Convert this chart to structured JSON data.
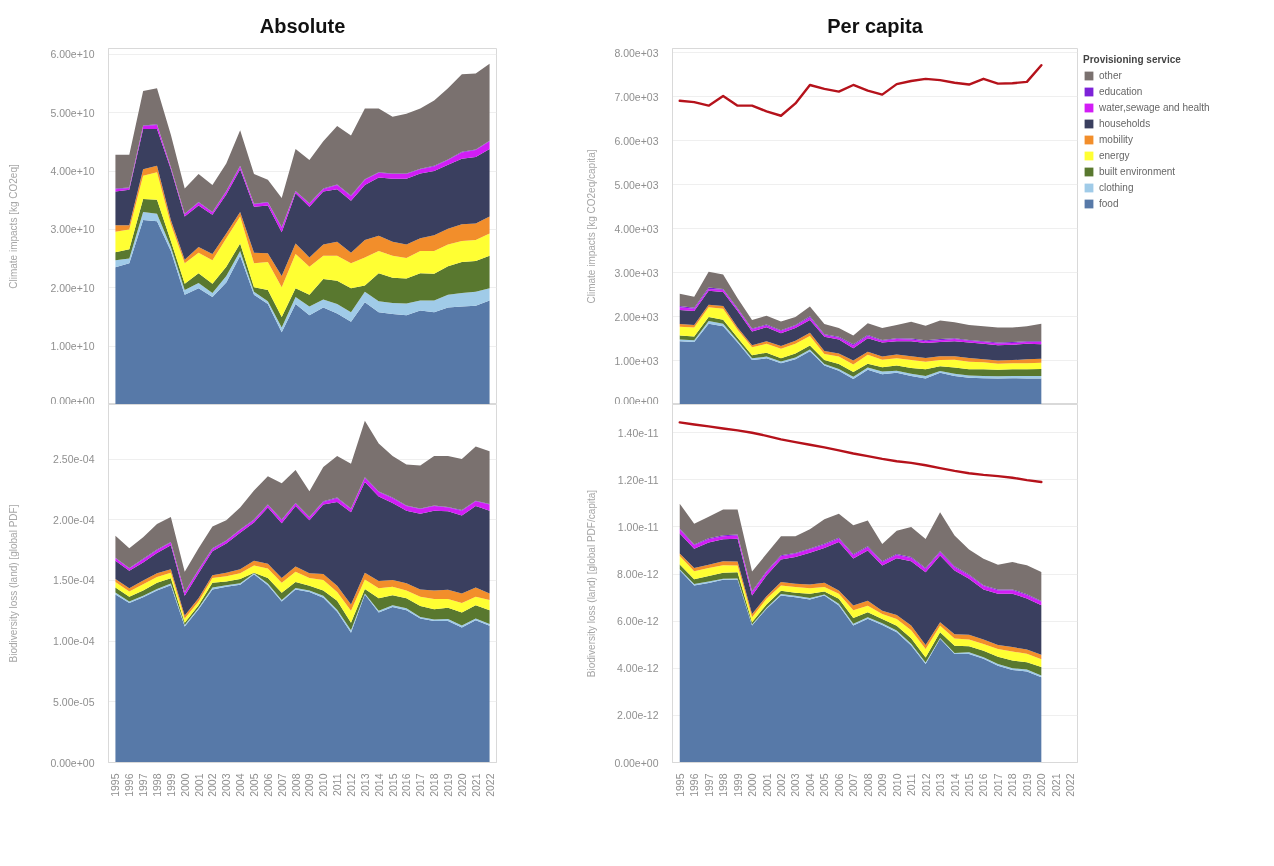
{
  "chart_data": [
    {
      "type": "area",
      "title": "Absolute",
      "ylabel": "Climate impacts [kg CO2eq]",
      "stacked": true,
      "grid": "y",
      "tick_labels": "y",
      "categories": [
        "1995",
        "1996",
        "1997",
        "1998",
        "1999",
        "2000",
        "2001",
        "2002",
        "2003",
        "2004",
        "2005",
        "2006",
        "2007",
        "2008",
        "2009",
        "2010",
        "2011",
        "2012",
        "2013",
        "2014",
        "2015",
        "2016",
        "2017",
        "2018",
        "2019",
        "2020",
        "2021",
        "2022"
      ],
      "ylim": [
        0,
        61000000000.0
      ],
      "yticks": [
        {
          "value": 0,
          "label": "0.00e+00"
        },
        {
          "value": 10000000000.0,
          "label": "1.00e+10"
        },
        {
          "value": 20000000000.0,
          "label": "2.00e+10"
        },
        {
          "value": 30000000000.0,
          "label": "3.00e+10"
        },
        {
          "value": 40000000000.0,
          "label": "4.00e+10"
        },
        {
          "value": 50000000000.0,
          "label": "5.00e+10"
        },
        {
          "value": 60000000000.0,
          "label": "6.00e+10"
        }
      ],
      "series": [
        {
          "color": "#5779a8",
          "values": [
            23500000000.0,
            24200000000.0,
            31600000000.0,
            31400000000.0,
            26300000000.0,
            18800000000.0,
            19900000000.0,
            18400000000.0,
            20900000000.0,
            25500000000.0,
            18800000000.0,
            17200000000.0,
            12400000000.0,
            17200000000.0,
            15300000000.0,
            16600000000.0,
            15600000000.0,
            14200000000.0,
            17500000000.0,
            15800000000.0,
            15500000000.0,
            15300000000.0,
            16100000000.0,
            15800000000.0,
            16600000000.0,
            16800000000.0,
            16900000000.0,
            17800000000.0
          ]
        },
        {
          "color": "#a0cbe8",
          "values": [
            1200000000.0,
            800000000.0,
            1400000000.0,
            1300000000.0,
            700000000.0,
            800000000.0,
            900000000.0,
            700000000.0,
            1100000000.0,
            800000000.0,
            500000000.0,
            500000000.0,
            800000000.0,
            1200000000.0,
            1500000000.0,
            1400000000.0,
            1600000000.0,
            1600000000.0,
            1800000000.0,
            1900000000.0,
            1900000000.0,
            2000000000.0,
            1700000000.0,
            2000000000.0,
            2200000000.0,
            2300000000.0,
            2400000000.0,
            2100000000.0
          ]
        },
        {
          "color": "#59782f",
          "values": [
            1400000000.0,
            1600000000.0,
            2200000000.0,
            2400000000.0,
            1000000000.0,
            1100000000.0,
            1700000000.0,
            1600000000.0,
            1600000000.0,
            1300000000.0,
            800000000.0,
            1900000000.0,
            1800000000.0,
            1500000000.0,
            2000000000.0,
            3500000000.0,
            4000000000.0,
            4100000000.0,
            1100000000.0,
            4800000000.0,
            4300000000.0,
            4300000000.0,
            4700000000.0,
            4600000000.0,
            4900000000.0,
            5300000000.0,
            5300000000.0,
            5600000000.0
          ]
        },
        {
          "color": "#ffff33",
          "values": [
            3500000000.0,
            3400000000.0,
            4000000000.0,
            4700000000.0,
            2900000000.0,
            3500000000.0,
            3500000000.0,
            4000000000.0,
            4900000000.0,
            4600000000.0,
            4100000000.0,
            4800000000.0,
            5100000000.0,
            5900000000.0,
            4800000000.0,
            4000000000.0,
            4300000000.0,
            4300000000.0,
            4800000000.0,
            3800000000.0,
            3800000000.0,
            3500000000.0,
            3800000000.0,
            3900000000.0,
            3700000000.0,
            3600000000.0,
            3600000000.0,
            3800000000.0
          ]
        },
        {
          "color": "#f28e2b",
          "values": [
            1100000000.0,
            700000000.0,
            1100000000.0,
            1100000000.0,
            700000000.0,
            600000000.0,
            1000000000.0,
            1100000000.0,
            800000000.0,
            800000000.0,
            1800000000.0,
            1500000000.0,
            1900000000.0,
            1800000000.0,
            1600000000.0,
            1900000000.0,
            2400000000.0,
            1800000000.0,
            3000000000.0,
            2600000000.0,
            2400000000.0,
            2300000000.0,
            2200000000.0,
            2700000000.0,
            2700000000.0,
            2900000000.0,
            2800000000.0,
            2900000000.0
          ]
        },
        {
          "color": "#3a3f5f",
          "values": [
            5800000000.0,
            6100000000.0,
            6900000000.0,
            6300000000.0,
            8700000000.0,
            7400000000.0,
            7100000000.0,
            6700000000.0,
            6700000000.0,
            7300000000.0,
            7900000000.0,
            8200000000.0,
            7500000000.0,
            8600000000.0,
            8700000000.0,
            9100000000.0,
            9000000000.0,
            8900000000.0,
            9400000000.0,
            10000000000.0,
            10800000000.0,
            11300000000.0,
            11100000000.0,
            11000000000.0,
            11000000000.0,
            11200000000.0,
            11400000000.0,
            11600000000.0
          ]
        },
        {
          "color": "#d21df5",
          "values": [
            400000000.0,
            300000000.0,
            500000000.0,
            700000000.0,
            300000000.0,
            400000000.0,
            500000000.0,
            400000000.0,
            500000000.0,
            500000000.0,
            400000000.0,
            500000000.0,
            800000000.0,
            300000000.0,
            500000000.0,
            400000000.0,
            700000000.0,
            800000000.0,
            900000000.0,
            800000000.0,
            800000000.0,
            800000000.0,
            700000000.0,
            800000000.0,
            800000000.0,
            1100000000.0,
            1200000000.0,
            1300000000.0
          ]
        },
        {
          "color": "#7d22d8",
          "values": [
            100000000.0,
            100000000.0,
            100000000.0,
            100000000.0,
            100000000.0,
            100000000.0,
            100000000.0,
            100000000.0,
            100000000.0,
            100000000.0,
            100000000.0,
            100000000.0,
            100000000.0,
            100000000.0,
            100000000.0,
            100000000.0,
            100000000.0,
            100000000.0,
            100000000.0,
            100000000.0,
            100000000.0,
            100000000.0,
            100000000.0,
            100000000.0,
            100000000.0,
            100000000.0,
            100000000.0,
            100000000.0
          ]
        },
        {
          "color": "#7a716f",
          "values": [
            5800000000.0,
            5600000000.0,
            5900000000.0,
            6200000000.0,
            5500000000.0,
            4300000000.0,
            4800000000.0,
            4600000000.0,
            4700000000.0,
            6100000000.0,
            5100000000.0,
            3800000000.0,
            5000000000.0,
            7200000000.0,
            7400000000.0,
            8100000000.0,
            10000000000.0,
            10300000000.0,
            12100000000.0,
            10900000000.0,
            9700000000.0,
            10200000000.0,
            10300000000.0,
            11200000000.0,
            12200000000.0,
            13300000000.0,
            13000000000.0,
            13200000000.0
          ]
        }
      ]
    },
    {
      "type": "area",
      "title": "Per capita",
      "ylabel": "Climate impacts [kg CO2eq/capita]",
      "stacked": true,
      "grid": "y",
      "tick_labels": "y",
      "legend": "right",
      "legend_title": "Provisioning service",
      "categories": [
        "1995",
        "1996",
        "1997",
        "1998",
        "1999",
        "2000",
        "2001",
        "2002",
        "2003",
        "2004",
        "2005",
        "2006",
        "2007",
        "2008",
        "2009",
        "2010",
        "2011",
        "2012",
        "2013",
        "2014",
        "2015",
        "2016",
        "2017",
        "2018",
        "2019",
        "2020"
      ],
      "ylim": [
        0,
        8100
      ],
      "yticks": [
        {
          "value": 0,
          "label": "0.00e+00"
        },
        {
          "value": 1000,
          "label": "1.00e+03"
        },
        {
          "value": 2000,
          "label": "2.00e+03"
        },
        {
          "value": 3000,
          "label": "3.00e+03"
        },
        {
          "value": 4000,
          "label": "4.00e+03"
        },
        {
          "value": 5000,
          "label": "5.00e+03"
        },
        {
          "value": 6000,
          "label": "6.00e+03"
        },
        {
          "value": 7000,
          "label": "7.00e+03"
        },
        {
          "value": 8000,
          "label": "8.00e+03"
        }
      ],
      "series": [
        {
          "name": "food",
          "color": "#5779a8",
          "values": [
            1440,
            1420,
            1840,
            1780,
            1410,
            1010,
            1050,
            940,
            1030,
            1210,
            890,
            770,
            580,
            790,
            690,
            720,
            650,
            590,
            720,
            650,
            610,
            600,
            590,
            600,
            590,
            590
          ]
        },
        {
          "name": "clothing",
          "color": "#a0cbe8",
          "values": [
            40,
            40,
            60,
            60,
            40,
            40,
            40,
            40,
            40,
            40,
            30,
            40,
            50,
            50,
            60,
            50,
            50,
            60,
            40,
            50,
            50,
            50,
            50,
            50,
            60,
            60
          ]
        },
        {
          "name": "built environment",
          "color": "#59782f",
          "values": [
            90,
            90,
            90,
            90,
            70,
            70,
            90,
            70,
            90,
            90,
            90,
            110,
            110,
            90,
            100,
            120,
            130,
            150,
            110,
            140,
            140,
            150,
            150,
            150,
            150,
            160
          ]
        },
        {
          "name": "energy",
          "color": "#ffff33",
          "values": [
            200,
            200,
            220,
            250,
            180,
            180,
            200,
            220,
            220,
            220,
            140,
            170,
            170,
            200,
            170,
            160,
            180,
            170,
            140,
            180,
            170,
            160,
            140,
            140,
            140,
            140
          ]
        },
        {
          "name": "mobility",
          "color": "#f28e2b",
          "values": [
            60,
            60,
            60,
            60,
            50,
            50,
            60,
            60,
            70,
            70,
            70,
            70,
            90,
            70,
            70,
            90,
            90,
            90,
            90,
            80,
            90,
            70,
            70,
            70,
            90,
            90
          ]
        },
        {
          "name": "households",
          "color": "#3a3f5f",
          "values": [
            320,
            320,
            320,
            320,
            380,
            310,
            320,
            290,
            290,
            290,
            320,
            320,
            280,
            310,
            320,
            300,
            340,
            340,
            320,
            340,
            350,
            350,
            350,
            350,
            350,
            330
          ]
        },
        {
          "name": "water,sewage and health",
          "color": "#d21df5",
          "values": [
            60,
            50,
            40,
            50,
            40,
            50,
            40,
            50,
            50,
            60,
            40,
            40,
            60,
            50,
            40,
            50,
            40,
            40,
            40,
            50,
            40,
            40,
            40,
            40,
            40,
            50
          ]
        },
        {
          "name": "education",
          "color": "#7d22d8",
          "values": [
            30,
            20,
            30,
            20,
            20,
            20,
            20,
            20,
            20,
            30,
            20,
            20,
            30,
            20,
            20,
            20,
            20,
            20,
            30,
            20,
            20,
            20,
            20,
            20,
            20,
            20
          ]
        },
        {
          "name": "other",
          "color": "#7a716f",
          "values": [
            280,
            250,
            360,
            330,
            230,
            190,
            200,
            200,
            180,
            220,
            230,
            200,
            200,
            270,
            270,
            300,
            380,
            330,
            420,
            360,
            340,
            340,
            340,
            330,
            340,
            400
          ]
        },
        {
          "type": "line",
          "color": "#b5121b",
          "values": [
            6910,
            6880,
            6800,
            7020,
            6800,
            6800,
            6670,
            6570,
            6850,
            7270,
            7180,
            7120,
            7270,
            7140,
            7050,
            7290,
            7360,
            7410,
            7380,
            7320,
            7280,
            7410,
            7300,
            7310,
            7340,
            7720
          ]
        }
      ]
    },
    {
      "type": "area",
      "ylabel": "Biodiversity loss (land) [global PDF]",
      "stacked": true,
      "grid": "y",
      "categories": [
        "1995",
        "1996",
        "1997",
        "1998",
        "1999",
        "2000",
        "2001",
        "2002",
        "2003",
        "2004",
        "2005",
        "2006",
        "2007",
        "2008",
        "2009",
        "2010",
        "2011",
        "2012",
        "2013",
        "2014",
        "2015",
        "2016",
        "2017",
        "2018",
        "2019",
        "2020",
        "2021",
        "2022"
      ],
      "ylim": [
        0,
        0.000295
      ],
      "yticks": [
        {
          "value": 0,
          "label": "0.00e+00"
        },
        {
          "value": 5e-05,
          "label": "5.00e-05"
        },
        {
          "value": 0.0001,
          "label": "1.00e-04"
        },
        {
          "value": 0.00015,
          "label": "1.50e-04"
        },
        {
          "value": 0.0002,
          "label": "2.00e-04"
        },
        {
          "value": 0.00025,
          "label": "2.50e-04"
        }
      ],
      "series": [
        {
          "color": "#5779a8",
          "values": [
            0.0001384,
            0.0001314,
            0.0001361,
            0.0001418,
            0.0001461,
            0.0001121,
            0.0001263,
            0.0001425,
            0.0001448,
            0.0001464,
            0.0001552,
            0.0001461,
            0.0001327,
            0.0001425,
            0.0001405,
            0.0001358,
            0.0001242,
            0.000107,
            0.0001384,
            0.0001237,
            0.0001281,
            0.0001255,
            0.0001186,
            0.0001165,
            0.0001165,
            0.0001113,
            0.0001173,
            0.0001126
          ]
        },
        {
          "color": "#a0cbe8",
          "values": [
            1.6e-06,
            1.3e-06,
            1.3e-06,
            1.2e-06,
            1.3e-06,
            1.3e-06,
            1.3e-06,
            1.8e-06,
            1.3e-06,
            1.3e-06,
            7e-07,
            1.3e-06,
            1.3e-06,
            1.3e-06,
            1.3e-06,
            1.6e-06,
            1.6e-06,
            2e-06,
            8e-07,
            1.3e-06,
            1.5e-06,
            1.6e-06,
            1.2e-06,
            1.3e-06,
            1.8e-06,
            1.6e-06,
            1.3e-06,
            1.6e-06
          ]
        },
        {
          "color": "#59782f",
          "values": [
            4.3e-06,
            3.9e-06,
            4.4e-06,
            5.2e-06,
            4.4e-06,
            1.8e-06,
            2e-06,
            3.9e-06,
            3.1e-06,
            3.6e-06,
            5e-07,
            4.7e-06,
            5.9e-06,
            4.9e-06,
            3.8e-06,
            4.4e-06,
            7.4e-06,
            6.2e-06,
            3.8e-06,
            1.03e-05,
            8.3e-06,
            8.2e-06,
            9.1e-06,
            8.5e-06,
            9.3e-06,
            1.08e-05,
            1.1e-05,
            1.13e-05
          ]
        },
        {
          "color": "#ffff33",
          "values": [
            4.4e-06,
            4.4e-06,
            5.1e-06,
            4.6e-06,
            4.6e-06,
            3.4e-06,
            3.1e-06,
            3.9e-06,
            4.2e-06,
            4.6e-06,
            6e-06,
            7.7e-06,
            8.3e-06,
            8.5e-06,
            6.5e-06,
            8.5e-06,
            7.3e-06,
            9.8e-06,
            7.8e-06,
            8.3e-06,
            6.9e-06,
            6.5e-06,
            7.7e-06,
            8.5e-06,
            7.2e-06,
            7.7e-06,
            7e-06,
            8.5e-06
          ]
        },
        {
          "color": "#f28e2b",
          "values": [
            2.6e-06,
            2.6e-06,
            3.1e-06,
            3.1e-06,
            2.9e-06,
            2.5e-06,
            2.6e-06,
            2.3e-06,
            3e-06,
            3.4e-06,
            3.8e-06,
            3.9e-06,
            3.9e-06,
            4.4e-06,
            3.8e-06,
            5.1e-06,
            5.1e-06,
            5.2e-06,
            5.6e-06,
            5.9e-06,
            5.5e-06,
            5.9e-06,
            5.9e-06,
            7e-06,
            7.5e-06,
            7.8e-06,
            7.7e-06,
            5.2e-06
          ]
        },
        {
          "color": "#3a3f5f",
          "values": [
            1.49e-05,
            1.44e-05,
            1.49e-05,
            1.68e-05,
            1.98e-05,
            1.63e-05,
            2.06e-05,
            1.96e-05,
            2.4e-05,
            3.01e-05,
            3.15e-05,
            4.64e-05,
            4.51e-05,
            4.97e-05,
            4.38e-05,
            5.72e-05,
            6.91e-05,
            7.6e-05,
            7.48e-05,
            6.96e-05,
            6.36e-05,
            5.98e-05,
            6.24e-05,
            6.57e-05,
            6.47e-05,
            6.44e-05,
            6.7e-05,
            6.83e-05
          ]
        },
        {
          "color": "#d21df5",
          "values": [
            2.1e-06,
            1.8e-06,
            2.4e-06,
            2.3e-06,
            2.1e-06,
            2.6e-06,
            2.6e-06,
            2e-06,
            2.1e-06,
            2.1e-06,
            2e-06,
            2e-06,
            2.5e-06,
            2.1e-06,
            2.1e-06,
            2.1e-06,
            3.1e-06,
            2.6e-06,
            3.3e-06,
            3.8e-06,
            3.9e-06,
            3.8e-06,
            3.9e-06,
            3.8e-06,
            3.1e-06,
            3.9e-06,
            3.9e-06,
            5.1e-06
          ]
        },
        {
          "color": "#7d22d8",
          "values": [
            5e-07,
            5e-07,
            5e-07,
            5e-07,
            5e-07,
            5e-07,
            5e-07,
            5e-07,
            5e-07,
            5e-07,
            5e-07,
            5e-07,
            5e-07,
            5e-07,
            5e-07,
            5e-07,
            5e-07,
            5e-07,
            5e-07,
            5e-07,
            5e-07,
            5e-07,
            5e-07,
            5e-07,
            5e-07,
            5e-07,
            5e-07,
            5e-07
          ]
        },
        {
          "color": "#7a716f",
          "values": [
            1.81e-05,
            1.62e-05,
            1.78e-05,
            2.11e-05,
            2.06e-05,
            1.67e-05,
            1.75e-05,
            1.8e-05,
            1.67e-05,
            1.81e-05,
            2.39e-05,
            2.32e-05,
            2.99e-05,
            2.71e-05,
            2.12e-05,
            2.84e-05,
            3.43e-05,
            3.68e-05,
            4.66e-05,
            3.94e-05,
            3.43e-05,
            3.37e-05,
            3.55e-05,
            4.07e-05,
            4.2e-05,
            4.2e-05,
            4.46e-05,
            4.33e-05
          ]
        }
      ]
    },
    {
      "type": "area",
      "ylabel": "Biodiversity loss (land) [global PDF/capita]",
      "stacked": true,
      "grid": "y",
      "categories": [
        "1995",
        "1996",
        "1997",
        "1998",
        "1999",
        "2000",
        "2001",
        "2002",
        "2003",
        "2004",
        "2005",
        "2006",
        "2007",
        "2008",
        "2009",
        "2010",
        "2011",
        "2012",
        "2013",
        "2014",
        "2015",
        "2016",
        "2017",
        "2018",
        "2019",
        "2020",
        "2021",
        "2022"
      ],
      "ylim": [
        0,
        1.52e-11
      ],
      "yticks": [
        {
          "value": 0,
          "label": "0.00e+00"
        },
        {
          "value": 2e-12,
          "label": "2.00e-12"
        },
        {
          "value": 4e-12,
          "label": "4.00e-12"
        },
        {
          "value": 6e-12,
          "label": "6.00e-12"
        },
        {
          "value": 8e-12,
          "label": "8.00e-12"
        },
        {
          "value": 1e-11,
          "label": "1.00e-11"
        },
        {
          "value": 1.2e-11,
          "label": "1.20e-11"
        },
        {
          "value": 1.4e-11,
          "label": "1.40e-11"
        }
      ],
      "series": [
        {
          "color": "#5779a8",
          "values": [
            8.16e-12,
            7.52e-12,
            7.62e-12,
            7.76e-12,
            7.77e-12,
            5.82e-12,
            6.53e-12,
            7.09e-12,
            7.02e-12,
            6.92e-12,
            7.09e-12,
            6.67e-12,
            5.82e-12,
            6.1e-12,
            5.84e-12,
            5.53e-12,
            4.97e-12,
            4.18e-12,
            5.25e-12,
            4.61e-12,
            4.61e-12,
            4.4e-12,
            4.11e-12,
            3.93e-12,
            3.86e-12,
            3.62e-12,
            null,
            null
          ]
        },
        {
          "color": "#a0cbe8",
          "values": [
            4e-14,
            6e-14,
            6e-14,
            4e-14,
            4e-14,
            4e-14,
            4e-14,
            6e-14,
            6e-14,
            6e-14,
            4e-14,
            7e-14,
            7e-14,
            7e-14,
            7e-14,
            7e-14,
            7e-14,
            7e-14,
            4e-14,
            4e-14,
            7e-14,
            7e-14,
            7e-14,
            7e-14,
            9e-14,
            7e-14,
            null,
            null
          ]
        },
        {
          "color": "#59782f",
          "values": [
            2.1e-13,
            2e-13,
            2.4e-13,
            2.6e-13,
            2.7e-13,
            1e-13,
            1.4e-13,
            1.4e-13,
            1.3e-13,
            1.8e-13,
            1.3e-13,
            2.1e-13,
            2.4e-13,
            2.1e-13,
            1.8e-13,
            2.1e-13,
            2.4e-13,
            2.1e-13,
            2.4e-13,
            3.1e-13,
            2.6e-13,
            2.8e-13,
            3.1e-13,
            3.3e-13,
            3.1e-13,
            3.6e-13,
            null,
            null
          ]
        },
        {
          "color": "#ffff33",
          "values": [
            3.6e-13,
            3.4e-13,
            3.4e-13,
            3.1e-13,
            2.8e-13,
            2.1e-13,
            2.4e-13,
            2.3e-13,
            2.4e-13,
            2.4e-13,
            1.9e-13,
            2.1e-13,
            3.3e-13,
            2.8e-13,
            2.1e-13,
            2.8e-13,
            3.3e-13,
            3.6e-13,
            2.8e-13,
            3.1e-13,
            2.8e-13,
            2.8e-13,
            3.3e-13,
            3.8e-13,
            3.6e-13,
            3.3e-13,
            null,
            null
          ]
        },
        {
          "color": "#f28e2b",
          "values": [
            1e-13,
            1.4e-13,
            1.4e-13,
            1.7e-13,
            1.7e-13,
            1.4e-13,
            1.1e-13,
            1.4e-13,
            1.4e-13,
            1.6e-13,
            1.8e-13,
            1.4e-13,
            2.1e-13,
            2.1e-13,
            1.4e-13,
            1.7e-13,
            2.1e-13,
            1.7e-13,
            1.4e-13,
            1.8e-13,
            2e-13,
            1.9e-13,
            1.7e-13,
            1.9e-13,
            1.8e-13,
            2e-13,
            null,
            null
          ]
        },
        {
          "color": "#3a3f5f",
          "values": [
            8.5e-13,
            8.2e-13,
            9.4e-13,
            9.4e-13,
            9.7e-13,
            7.8e-13,
            8.8e-13,
            9.6e-13,
            1.13e-12,
            1.35e-12,
            1.48e-12,
            2.06e-12,
            1.99e-12,
            2.13e-12,
            1.92e-12,
            2.41e-12,
            2.72e-12,
            3.09e-12,
            2.84e-12,
            2.7e-12,
            2.38e-12,
            2.13e-12,
            2.17e-12,
            2.27e-12,
            2.16e-12,
            2.1e-12,
            null,
            null
          ]
        },
        {
          "color": "#d21df5",
          "values": [
            1.7e-13,
            1.4e-13,
            1.4e-13,
            1.3e-13,
            1.4e-13,
            1.4e-13,
            1.4e-13,
            1.4e-13,
            1.4e-13,
            1.4e-13,
            1.4e-13,
            1.4e-13,
            1.4e-13,
            1.4e-13,
            1.4e-13,
            1.4e-13,
            1.4e-13,
            1.4e-13,
            1.4e-13,
            1.4e-13,
            1.4e-13,
            1.4e-13,
            1.4e-13,
            1.4e-13,
            1.4e-13,
            1.4e-13,
            null,
            null
          ]
        },
        {
          "color": "#7d22d8",
          "values": [
            4e-14,
            4e-14,
            4e-14,
            4e-14,
            4e-14,
            4e-14,
            4e-14,
            4e-14,
            4e-14,
            4e-14,
            4e-14,
            4e-14,
            4e-14,
            4e-14,
            4e-14,
            4e-14,
            4e-14,
            4e-14,
            4e-14,
            4e-14,
            4e-14,
            4e-14,
            4e-14,
            4e-14,
            4e-14,
            4e-14,
            null,
            null
          ]
        },
        {
          "color": "#7a716f",
          "values": [
            1.06e-12,
            8.8e-13,
            9.1e-13,
            1.09e-12,
            1.06e-12,
            8.4e-13,
            7.4e-13,
            8.1e-13,
            7.1e-13,
            8.1e-13,
            1.04e-12,
            1.02e-12,
            1.23e-12,
            1.09e-12,
            7.4e-13,
            9.9e-13,
            1.28e-12,
            1.23e-12,
            1.66e-12,
            1.31e-12,
            1.06e-12,
            1.12e-12,
            1.06e-12,
            1.16e-12,
            1.23e-12,
            1.23e-12,
            null,
            null
          ]
        },
        {
          "type": "line",
          "color": "#b5121b",
          "values": [
            1.444e-11,
            1.435e-11,
            1.427e-11,
            1.418e-11,
            1.41e-11,
            1.4e-11,
            1.387e-11,
            1.372e-11,
            1.36e-11,
            1.349e-11,
            1.338e-11,
            1.325e-11,
            1.312e-11,
            1.301e-11,
            1.289e-11,
            1.279e-11,
            1.272e-11,
            1.262e-11,
            1.25e-11,
            1.238e-11,
            1.228e-11,
            1.221e-11,
            1.216e-11,
            1.209e-11,
            1.199e-11,
            1.191e-11,
            null,
            null
          ]
        }
      ]
    }
  ]
}
